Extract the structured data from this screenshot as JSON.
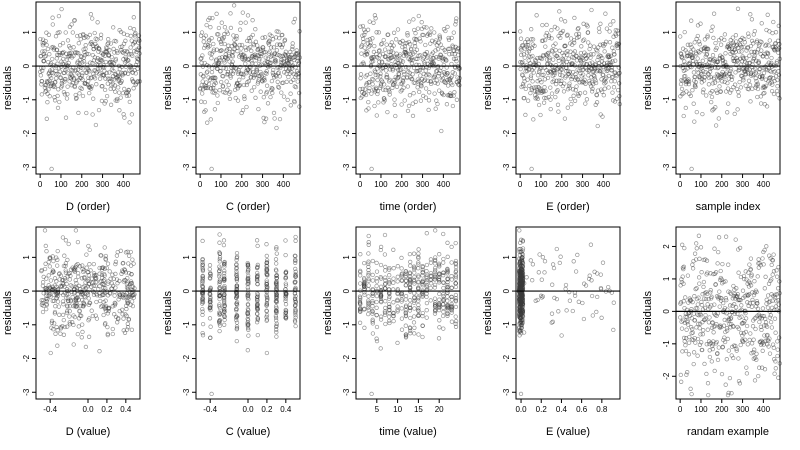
{
  "figure": {
    "background": "#ffffff",
    "point_color": "#3a3a3a",
    "axis_color": "#000000"
  },
  "chart_data": [
    {
      "id": "d-order",
      "type": "scatter",
      "xlabel": "D (order)",
      "ylabel": "residuals",
      "xlim": [
        -20,
        480
      ],
      "ylim": [
        -3.2,
        1.9
      ],
      "xticks": [
        0,
        100,
        200,
        300,
        400
      ],
      "xtick_labels": [
        "0",
        "100",
        "200",
        "300",
        "400"
      ],
      "yticks": [
        -3,
        -2,
        -1,
        0,
        1
      ],
      "ytick_labels": [
        "-3",
        "-2",
        "-1",
        "0",
        "1"
      ],
      "hline": 0,
      "n_points": 480,
      "pattern": "uniform-order",
      "seed": 11
    },
    {
      "id": "c-order",
      "type": "scatter",
      "xlabel": "C (order)",
      "ylabel": "residuals",
      "xlim": [
        -20,
        480
      ],
      "ylim": [
        -3.2,
        1.9
      ],
      "xticks": [
        0,
        100,
        200,
        300,
        400
      ],
      "xtick_labels": [
        "0",
        "100",
        "200",
        "300",
        "400"
      ],
      "yticks": [
        -3,
        -2,
        -1,
        0,
        1
      ],
      "ytick_labels": [
        "-3",
        "-2",
        "-1",
        "0",
        "1"
      ],
      "hline": 0,
      "n_points": 480,
      "pattern": "uniform-order",
      "seed": 23
    },
    {
      "id": "time-order",
      "type": "scatter",
      "xlabel": "time (order)",
      "ylabel": "residuals",
      "xlim": [
        -20,
        480
      ],
      "ylim": [
        -3.2,
        1.9
      ],
      "xticks": [
        0,
        100,
        200,
        300,
        400
      ],
      "xtick_labels": [
        "0",
        "100",
        "200",
        "300",
        "400"
      ],
      "yticks": [
        -3,
        -2,
        -1,
        0,
        1
      ],
      "ytick_labels": [
        "-3",
        "-2",
        "-1",
        "0",
        "1"
      ],
      "hline": 0,
      "n_points": 480,
      "pattern": "uniform-order",
      "seed": 37
    },
    {
      "id": "e-order",
      "type": "scatter",
      "xlabel": "E (order)",
      "ylabel": "residuals",
      "xlim": [
        -20,
        480
      ],
      "ylim": [
        -3.2,
        1.9
      ],
      "xticks": [
        0,
        100,
        200,
        300,
        400
      ],
      "xtick_labels": [
        "0",
        "100",
        "200",
        "300",
        "400"
      ],
      "yticks": [
        -3,
        -2,
        -1,
        0,
        1
      ],
      "ytick_labels": [
        "-3",
        "-2",
        "-1",
        "0",
        "1"
      ],
      "hline": 0,
      "n_points": 480,
      "pattern": "uniform-order",
      "seed": 41
    },
    {
      "id": "sample-index",
      "type": "scatter",
      "xlabel": "sample index",
      "ylabel": "residuals",
      "xlim": [
        -20,
        480
      ],
      "ylim": [
        -3.2,
        1.9
      ],
      "xticks": [
        0,
        100,
        200,
        300,
        400
      ],
      "xtick_labels": [
        "0",
        "100",
        "200",
        "300",
        "400"
      ],
      "yticks": [
        -3,
        -2,
        -1,
        0,
        1
      ],
      "ytick_labels": [
        "-3",
        "-2",
        "-1",
        "0",
        "1"
      ],
      "hline": 0,
      "n_points": 480,
      "pattern": "uniform-order",
      "seed": 53
    },
    {
      "id": "d-value",
      "type": "scatter",
      "xlabel": "D (value)",
      "ylabel": "residuals",
      "xlim": [
        -0.55,
        0.55
      ],
      "ylim": [
        -3.2,
        1.9
      ],
      "xticks": [
        -0.4,
        0.0,
        0.2,
        0.4
      ],
      "xtick_labels": [
        "-0.4",
        "0.0",
        "0.2",
        "0.4"
      ],
      "yticks": [
        -3,
        -2,
        -1,
        0,
        1
      ],
      "ytick_labels": [
        "-3",
        "-2",
        "-1",
        "0",
        "1"
      ],
      "hline": 0,
      "n_points": 480,
      "pattern": "uniform-value",
      "seed": 61
    },
    {
      "id": "c-value",
      "type": "scatter",
      "xlabel": "C (value)",
      "ylabel": "residuals",
      "xlim": [
        -0.55,
        0.55
      ],
      "ylim": [
        -3.2,
        1.9
      ],
      "xticks": [
        -0.4,
        0.0,
        0.2,
        0.4
      ],
      "xtick_labels": [
        "-0.4",
        "0.0",
        "0.2",
        "0.4"
      ],
      "yticks": [
        -3,
        -2,
        -1,
        0,
        1
      ],
      "ytick_labels": [
        "-3",
        "-2",
        "-1",
        "0",
        "1"
      ],
      "hline": 0,
      "n_points": 480,
      "pattern": "columns",
      "columns": [
        -0.48,
        -0.4,
        -0.3,
        -0.25,
        -0.12,
        0.0,
        0.1,
        0.2,
        0.3,
        0.4,
        0.5
      ],
      "seed": 73
    },
    {
      "id": "time-value",
      "type": "scatter",
      "xlabel": "time (value)",
      "ylabel": "residuals",
      "xlim": [
        0,
        25
      ],
      "ylim": [
        -3.2,
        1.9
      ],
      "xticks": [
        5,
        10,
        15,
        20
      ],
      "xtick_labels": [
        "5",
        "10",
        "15",
        "20"
      ],
      "yticks": [
        -3,
        -2,
        -1,
        0,
        1
      ],
      "ytick_labels": [
        "-3",
        "-2",
        "-1",
        "0",
        "1"
      ],
      "hline": 0,
      "n_points": 480,
      "pattern": "columns",
      "columns": [
        1,
        2,
        3,
        4,
        5,
        6,
        7,
        8,
        9,
        10,
        11,
        12,
        13,
        14,
        15,
        16,
        17,
        18,
        19,
        20,
        21,
        22,
        23,
        24
      ],
      "seed": 89
    },
    {
      "id": "e-value",
      "type": "scatter",
      "xlabel": "E (value)",
      "ylabel": "residuals",
      "xlim": [
        -0.05,
        0.98
      ],
      "ylim": [
        -3.2,
        1.9
      ],
      "xticks": [
        0.0,
        0.2,
        0.4,
        0.6,
        0.8
      ],
      "xtick_labels": [
        "0.0",
        "0.2",
        "0.4",
        "0.6",
        "0.8"
      ],
      "yticks": [
        -3,
        -2,
        -1,
        0,
        1
      ],
      "ytick_labels": [
        "-3",
        "-2",
        "-1",
        "0",
        "1"
      ],
      "hline": 0,
      "n_points": 480,
      "pattern": "skewed",
      "seed": 97
    },
    {
      "id": "random-example",
      "type": "scatter",
      "xlabel": "randam example",
      "ylabel": "residuals",
      "xlim": [
        -20,
        480
      ],
      "ylim": [
        -2.7,
        2.6
      ],
      "xticks": [
        0,
        100,
        200,
        300,
        400
      ],
      "xtick_labels": [
        "0",
        "100",
        "200",
        "300",
        "400"
      ],
      "yticks": [
        -2,
        -1,
        0,
        1,
        2
      ],
      "ytick_labels": [
        "-2",
        "-1",
        "0",
        "1",
        "2"
      ],
      "hline": 0,
      "n_points": 480,
      "pattern": "uniform-order-wide",
      "seed": 101
    }
  ]
}
